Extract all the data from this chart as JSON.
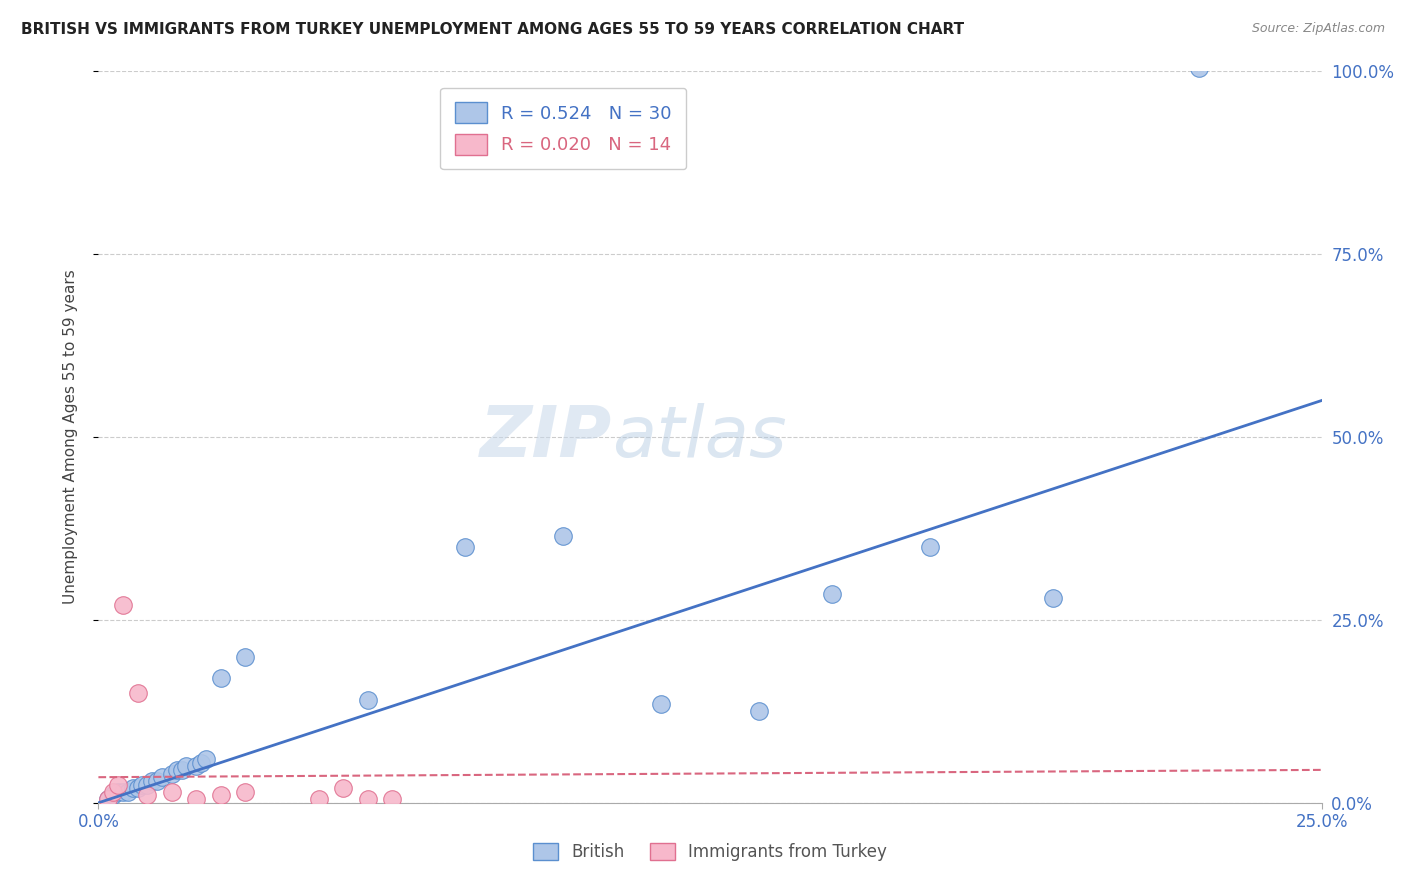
{
  "title": "BRITISH VS IMMIGRANTS FROM TURKEY UNEMPLOYMENT AMONG AGES 55 TO 59 YEARS CORRELATION CHART",
  "source": "Source: ZipAtlas.com",
  "ylabel": "Unemployment Among Ages 55 to 59 years",
  "xlim": [
    0.0,
    25.0
  ],
  "ylim": [
    0.0,
    100.0
  ],
  "ytick_values": [
    0.0,
    25.0,
    50.0,
    75.0,
    100.0
  ],
  "ytick_labels": [
    "0.0%",
    "25.0%",
    "50.0%",
    "75.0%",
    "100.0%"
  ],
  "xtick_values": [
    0.0,
    25.0
  ],
  "xtick_labels": [
    "0.0%",
    "25.0%"
  ],
  "british_R": 0.524,
  "british_N": 30,
  "turkey_R": 0.02,
  "turkey_N": 14,
  "british_color": "#aec6e8",
  "british_edge_color": "#5b8fcf",
  "british_line_color": "#4472c4",
  "turkey_color": "#f7b8cb",
  "turkey_edge_color": "#e07090",
  "turkey_line_color": "#d9667f",
  "british_x": [
    0.2,
    0.3,
    0.4,
    0.5,
    0.6,
    0.7,
    0.8,
    0.9,
    1.0,
    1.1,
    1.2,
    1.3,
    1.5,
    1.6,
    1.7,
    1.8,
    2.0,
    2.1,
    2.2,
    2.5,
    3.0,
    5.5,
    7.5,
    9.5,
    11.5,
    13.5,
    15.0,
    17.0,
    19.5,
    22.5
  ],
  "british_y": [
    0.5,
    1.0,
    1.5,
    1.5,
    1.5,
    2.0,
    2.0,
    2.5,
    2.5,
    3.0,
    3.0,
    3.5,
    4.0,
    4.5,
    4.5,
    5.0,
    5.0,
    5.5,
    6.0,
    17.0,
    20.0,
    14.0,
    35.0,
    36.5,
    13.5,
    12.5,
    28.5,
    35.0,
    28.0,
    100.5
  ],
  "turkey_x": [
    0.2,
    0.3,
    0.4,
    0.5,
    0.8,
    1.0,
    1.5,
    2.0,
    2.5,
    3.0,
    4.5,
    5.0,
    5.5,
    6.0
  ],
  "turkey_y": [
    0.5,
    1.5,
    2.5,
    27.0,
    15.0,
    1.0,
    1.5,
    0.5,
    1.0,
    1.5,
    0.5,
    2.0,
    0.5,
    0.5
  ],
  "british_line_x": [
    0.0,
    25.0
  ],
  "british_line_y": [
    0.0,
    55.0
  ],
  "turkey_line_x": [
    0.0,
    25.0
  ],
  "turkey_line_y": [
    3.5,
    4.5
  ],
  "watermark_line1": "ZIP",
  "watermark_line2": "atlas",
  "watermark": "ZIPatlas",
  "background_color": "#ffffff",
  "grid_color": "#cccccc",
  "legend_british_label": "R = 0.524   N = 30",
  "legend_turkey_label": "R = 0.020   N = 14",
  "bottom_legend_british": "British",
  "bottom_legend_turkey": "Immigrants from Turkey"
}
